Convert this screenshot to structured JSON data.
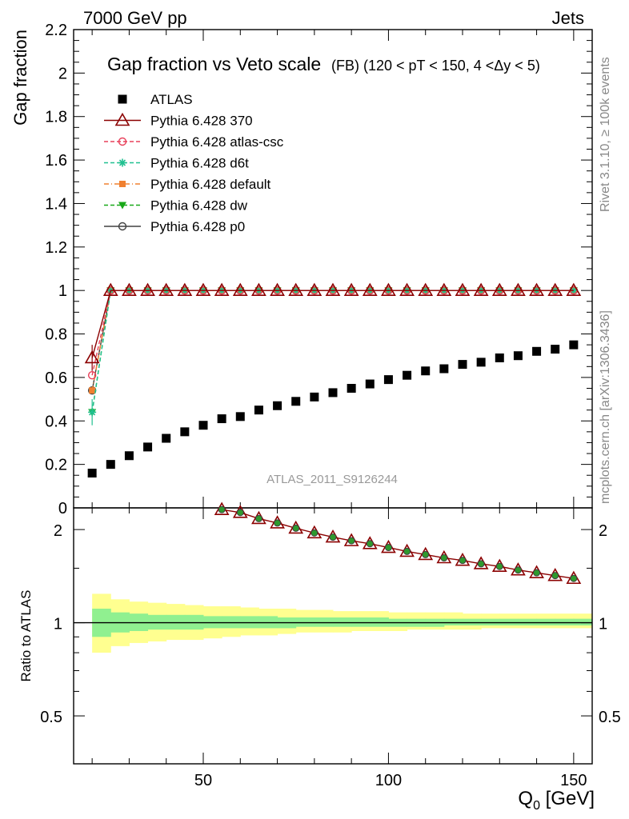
{
  "header": {
    "left": "7000 GeV pp",
    "right": "Jets"
  },
  "side_labels": {
    "rivet": "Rivet 3.1.10, ≥ 100k events",
    "mcplots": "mcplots.cern.ch [arXiv:1306.3436]"
  },
  "watermark": "ATLAS_2011_S9126244",
  "chart_data": [
    {
      "type": "scatter",
      "title": "Gap fraction vs Veto scale",
      "subtitle": "(FB) (120 < pT < 150, 4 <Δy < 5)",
      "ylabel": "Gap fraction",
      "xlim": [
        15,
        155
      ],
      "ylim": [
        0,
        2.2
      ],
      "yticks": [
        0,
        0.2,
        0.4,
        0.6,
        0.8,
        1,
        1.2,
        1.4,
        1.6,
        1.8,
        2,
        2.2
      ],
      "legend_position": "top-left",
      "x": [
        20,
        25,
        30,
        35,
        40,
        45,
        50,
        55,
        60,
        65,
        70,
        75,
        80,
        85,
        90,
        95,
        100,
        105,
        110,
        115,
        120,
        125,
        130,
        135,
        140,
        145,
        150
      ],
      "series": [
        {
          "name": "ATLAS",
          "color": "#000000",
          "marker": "square",
          "line": "none",
          "values": [
            0.16,
            0.2,
            0.24,
            0.28,
            0.32,
            0.35,
            0.38,
            0.41,
            0.42,
            0.45,
            0.47,
            0.49,
            0.51,
            0.53,
            0.55,
            0.57,
            0.59,
            0.61,
            0.63,
            0.64,
            0.66,
            0.67,
            0.69,
            0.7,
            0.72,
            0.73,
            0.75
          ]
        },
        {
          "name": "Pythia 6.428 370",
          "color": "#8b0000",
          "marker": "triangle",
          "line": "solid",
          "values": [
            0.69,
            1,
            1,
            1,
            1,
            1,
            1,
            1,
            1,
            1,
            1,
            1,
            1,
            1,
            1,
            1,
            1,
            1,
            1,
            1,
            1,
            1,
            1,
            1,
            1,
            1,
            1
          ]
        },
        {
          "name": "Pythia 6.428 atlas-csc",
          "color": "#e8405a",
          "marker": "open-circle",
          "line": "dashed",
          "values": [
            0.61,
            1,
            1,
            1,
            1,
            1,
            1,
            1,
            1,
            1,
            1,
            1,
            1,
            1,
            1,
            1,
            1,
            1,
            1,
            1,
            1,
            1,
            1,
            1,
            1,
            1,
            1
          ]
        },
        {
          "name": "Pythia 6.428 d6t",
          "color": "#20c090",
          "marker": "star",
          "line": "dashed",
          "values": [
            0.44,
            1,
            1,
            1,
            1,
            1,
            1,
            1,
            1,
            1,
            1,
            1,
            1,
            1,
            1,
            1,
            1,
            1,
            1,
            1,
            1,
            1,
            1,
            1,
            1,
            1,
            1
          ]
        },
        {
          "name": "Pythia 6.428 default",
          "color": "#f08030",
          "marker": "filled-square",
          "line": "dashdot",
          "values": [
            0.54,
            1,
            1,
            1,
            1,
            1,
            1,
            1,
            1,
            1,
            1,
            1,
            1,
            1,
            1,
            1,
            1,
            1,
            1,
            1,
            1,
            1,
            1,
            1,
            1,
            1,
            1
          ]
        },
        {
          "name": "Pythia 6.428 dw",
          "color": "#18a818",
          "marker": "down-triangle",
          "line": "dashed",
          "values": [
            0.44,
            1,
            1,
            1,
            1,
            1,
            1,
            1,
            1,
            1,
            1,
            1,
            1,
            1,
            1,
            1,
            1,
            1,
            1,
            1,
            1,
            1,
            1,
            1,
            1,
            1,
            1
          ]
        },
        {
          "name": "Pythia 6.428 p0",
          "color": "#404040",
          "marker": "open-circle",
          "line": "solid",
          "values": [
            0.54,
            1,
            1,
            1,
            1,
            1,
            1,
            1,
            1,
            1,
            1,
            1,
            1,
            1,
            1,
            1,
            1,
            1,
            1,
            1,
            1,
            1,
            1,
            1,
            1,
            1,
            1
          ]
        }
      ]
    },
    {
      "type": "line",
      "ylabel": "Ratio to ATLAS",
      "xlabel": "Q0 [GeV]",
      "xlim": [
        15,
        155
      ],
      "ylim": [
        0.35,
        2.35
      ],
      "yscale": "log",
      "xticks": [
        50,
        100,
        150
      ],
      "yticks": [
        0.5,
        1,
        2
      ],
      "x": [
        55,
        60,
        65,
        70,
        75,
        80,
        85,
        90,
        95,
        100,
        105,
        110,
        115,
        120,
        125,
        130,
        135,
        140,
        145,
        150
      ],
      "series": [
        {
          "name": "Pythia 6.428 370",
          "color": "#8b0000",
          "values": [
            2.32,
            2.27,
            2.17,
            2.1,
            2.02,
            1.95,
            1.89,
            1.84,
            1.8,
            1.75,
            1.7,
            1.66,
            1.62,
            1.59,
            1.55,
            1.52,
            1.48,
            1.45,
            1.42,
            1.39
          ]
        }
      ],
      "bands": {
        "x_edges": [
          20,
          25,
          30,
          35,
          40,
          45,
          50,
          55,
          60,
          65,
          70,
          75,
          80,
          85,
          90,
          95,
          100,
          105,
          110,
          115,
          120,
          125,
          130,
          135,
          140,
          145,
          150,
          155
        ],
        "stat": {
          "color": "#90f090",
          "lo": [
            0.9,
            0.93,
            0.94,
            0.95,
            0.95,
            0.95,
            0.96,
            0.96,
            0.96,
            0.96,
            0.96,
            0.97,
            0.97,
            0.97,
            0.97,
            0.97,
            0.97,
            0.97,
            0.97,
            0.98,
            0.98,
            0.98,
            0.98,
            0.98,
            0.98,
            0.98,
            0.98
          ],
          "hi": [
            1.11,
            1.08,
            1.07,
            1.06,
            1.06,
            1.06,
            1.05,
            1.05,
            1.05,
            1.05,
            1.04,
            1.04,
            1.04,
            1.04,
            1.04,
            1.04,
            1.03,
            1.03,
            1.03,
            1.03,
            1.03,
            1.03,
            1.03,
            1.03,
            1.03,
            1.03,
            1.03
          ]
        },
        "syst": {
          "color": "#ffff90",
          "lo": [
            0.8,
            0.84,
            0.86,
            0.87,
            0.88,
            0.88,
            0.89,
            0.9,
            0.91,
            0.91,
            0.92,
            0.93,
            0.93,
            0.93,
            0.94,
            0.94,
            0.94,
            0.95,
            0.95,
            0.95,
            0.95,
            0.96,
            0.96,
            0.96,
            0.96,
            0.96,
            0.96
          ],
          "hi": [
            1.24,
            1.19,
            1.17,
            1.16,
            1.15,
            1.14,
            1.13,
            1.13,
            1.12,
            1.11,
            1.11,
            1.1,
            1.1,
            1.09,
            1.09,
            1.09,
            1.08,
            1.08,
            1.08,
            1.08,
            1.07,
            1.07,
            1.07,
            1.07,
            1.07,
            1.07,
            1.07
          ]
        }
      }
    }
  ]
}
